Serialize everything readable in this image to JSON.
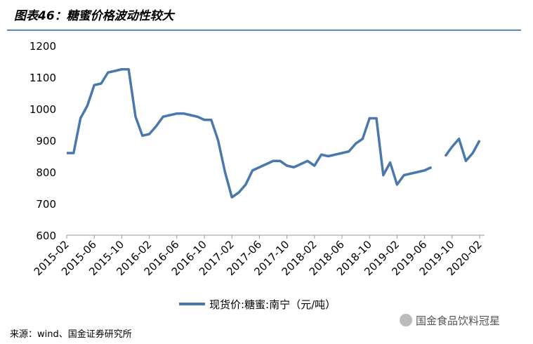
{
  "header": {
    "title": "图表46：糖蜜价格波动性较大"
  },
  "chart_data": {
    "type": "line",
    "categories": [
      "2015-02",
      null,
      null,
      null,
      "2015-06",
      null,
      null,
      null,
      "2015-10",
      null,
      null,
      null,
      "2016-02",
      null,
      null,
      null,
      "2016-06",
      null,
      null,
      null,
      "2016-10",
      null,
      null,
      null,
      "2017-02",
      null,
      null,
      null,
      "2017-06",
      null,
      null,
      null,
      "2017-10",
      null,
      null,
      null,
      "2018-02",
      null,
      null,
      null,
      "2018-06",
      null,
      null,
      null,
      "2018-10",
      null,
      null,
      null,
      "2019-02",
      null,
      null,
      null,
      "2019-06",
      null,
      null,
      null,
      "2019-10",
      null,
      null,
      null,
      "2020-02"
    ],
    "series": [
      {
        "name": "现货价:糖蜜:南宁（元/吨）",
        "color": "#4a78ac",
        "values": [
          860,
          860,
          970,
          1010,
          1075,
          1080,
          1115,
          1120,
          1125,
          1125,
          975,
          915,
          920,
          945,
          975,
          980,
          985,
          985,
          980,
          975,
          965,
          965,
          900,
          800,
          720,
          735,
          760,
          805,
          815,
          825,
          835,
          835,
          820,
          815,
          825,
          835,
          820,
          855,
          850,
          855,
          860,
          865,
          890,
          905,
          970,
          970,
          790,
          830,
          760,
          790,
          795,
          800,
          805,
          815,
          null,
          850,
          880,
          905,
          835,
          860,
          900
        ]
      }
    ],
    "ylim": [
      600,
      1200
    ],
    "yticks": [
      600,
      700,
      800,
      900,
      1000,
      1100,
      1200
    ]
  },
  "footer": {
    "source": "来源：wind、国金证券研究所",
    "watermark": "国金食品饮料冠星"
  }
}
